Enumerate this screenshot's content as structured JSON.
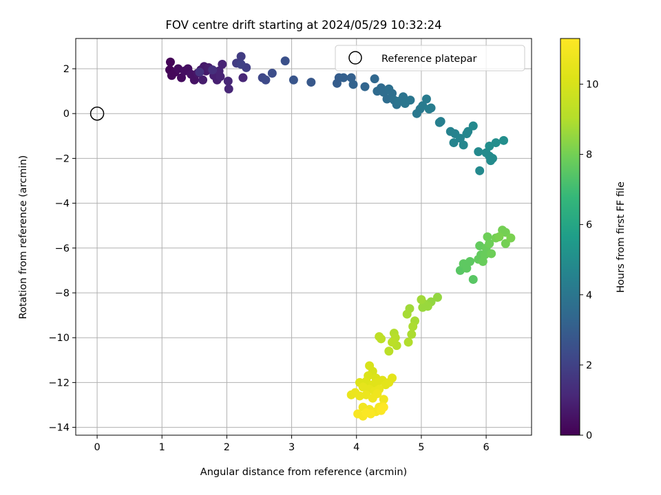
{
  "chart_data": {
    "type": "scatter",
    "title": "FOV centre drift starting at 2024/05/29 10:32:24",
    "xlabel": "Angular distance from reference (arcmin)",
    "ylabel": "Rotation from reference (arcmin)",
    "xlim": [
      -0.33,
      6.7
    ],
    "ylim": [
      -14.35,
      3.35
    ],
    "xticks": [
      0,
      1,
      2,
      3,
      4,
      5,
      6
    ],
    "yticks": [
      2,
      0,
      -2,
      -4,
      -6,
      -8,
      -10,
      -12,
      -14
    ],
    "grid": true,
    "legend": {
      "position": "top-right",
      "entries": [
        "Reference platepar"
      ]
    },
    "reference_point": {
      "x": 0,
      "y": 0
    },
    "colorbar": {
      "label": "Hours from first FF file",
      "colormap": "viridis",
      "range": [
        0,
        11.3
      ],
      "ticks": [
        0,
        2,
        4,
        6,
        8,
        10
      ]
    },
    "points": [
      {
        "x": 1.13,
        "y": 2.3,
        "t": 0.1
      },
      {
        "x": 1.12,
        "y": 1.95,
        "t": 0.1
      },
      {
        "x": 1.15,
        "y": 1.7,
        "t": 0.2
      },
      {
        "x": 1.2,
        "y": 1.85,
        "t": 0.2
      },
      {
        "x": 1.25,
        "y": 2.0,
        "t": 0.3
      },
      {
        "x": 1.3,
        "y": 1.6,
        "t": 0.3
      },
      {
        "x": 1.35,
        "y": 1.9,
        "t": 0.4
      },
      {
        "x": 1.4,
        "y": 2.0,
        "t": 0.4
      },
      {
        "x": 1.45,
        "y": 1.75,
        "t": 0.5
      },
      {
        "x": 1.5,
        "y": 1.5,
        "t": 0.5
      },
      {
        "x": 1.55,
        "y": 1.8,
        "t": 0.6
      },
      {
        "x": 1.6,
        "y": 1.95,
        "t": 0.6
      },
      {
        "x": 1.65,
        "y": 2.1,
        "t": 0.7
      },
      {
        "x": 1.68,
        "y": 1.9,
        "t": 0.7
      },
      {
        "x": 1.72,
        "y": 2.05,
        "t": 0.8
      },
      {
        "x": 1.63,
        "y": 1.5,
        "t": 0.8
      },
      {
        "x": 1.8,
        "y": 1.7,
        "t": 0.9
      },
      {
        "x": 1.85,
        "y": 1.5,
        "t": 0.9
      },
      {
        "x": 1.88,
        "y": 1.9,
        "t": 1.0
      },
      {
        "x": 1.93,
        "y": 2.2,
        "t": 1.0
      },
      {
        "x": 1.9,
        "y": 1.65,
        "t": 1.0
      },
      {
        "x": 2.02,
        "y": 1.45,
        "t": 1.1
      },
      {
        "x": 2.03,
        "y": 1.1,
        "t": 1.1
      },
      {
        "x": 2.25,
        "y": 1.6,
        "t": 1.1
      },
      {
        "x": 1.78,
        "y": 1.95,
        "t": 1.4
      },
      {
        "x": 1.58,
        "y": 1.85,
        "t": 1.5
      },
      {
        "x": 2.15,
        "y": 2.25,
        "t": 1.8
      },
      {
        "x": 2.22,
        "y": 2.55,
        "t": 1.8
      },
      {
        "x": 2.3,
        "y": 2.05,
        "t": 1.9
      },
      {
        "x": 2.22,
        "y": 2.2,
        "t": 2.0
      },
      {
        "x": 2.55,
        "y": 1.6,
        "t": 2.2
      },
      {
        "x": 2.6,
        "y": 1.5,
        "t": 2.3
      },
      {
        "x": 2.7,
        "y": 1.8,
        "t": 2.4
      },
      {
        "x": 2.9,
        "y": 2.35,
        "t": 2.5
      },
      {
        "x": 3.03,
        "y": 1.5,
        "t": 2.7
      },
      {
        "x": 3.3,
        "y": 1.4,
        "t": 2.8
      },
      {
        "x": 3.7,
        "y": 1.35,
        "t": 3.0
      },
      {
        "x": 3.73,
        "y": 1.6,
        "t": 3.0
      },
      {
        "x": 3.8,
        "y": 1.6,
        "t": 3.1
      },
      {
        "x": 3.92,
        "y": 1.6,
        "t": 3.1
      },
      {
        "x": 3.95,
        "y": 1.3,
        "t": 3.2
      },
      {
        "x": 4.13,
        "y": 1.2,
        "t": 3.3
      },
      {
        "x": 4.28,
        "y": 1.55,
        "t": 3.4
      },
      {
        "x": 4.32,
        "y": 1.0,
        "t": 3.5
      },
      {
        "x": 4.38,
        "y": 1.15,
        "t": 3.5
      },
      {
        "x": 4.42,
        "y": 0.95,
        "t": 3.6
      },
      {
        "x": 4.47,
        "y": 0.65,
        "t": 3.6
      },
      {
        "x": 4.5,
        "y": 1.1,
        "t": 3.7
      },
      {
        "x": 4.55,
        "y": 0.9,
        "t": 3.7
      },
      {
        "x": 4.58,
        "y": 0.6,
        "t": 3.8
      },
      {
        "x": 4.62,
        "y": 0.4,
        "t": 3.8
      },
      {
        "x": 4.65,
        "y": 0.55,
        "t": 3.9
      },
      {
        "x": 4.72,
        "y": 0.75,
        "t": 3.9
      },
      {
        "x": 4.75,
        "y": 0.45,
        "t": 4.0
      },
      {
        "x": 4.83,
        "y": 0.6,
        "t": 4.0
      },
      {
        "x": 4.93,
        "y": 0.0,
        "t": 4.1
      },
      {
        "x": 4.98,
        "y": 0.2,
        "t": 4.1
      },
      {
        "x": 5.02,
        "y": 0.35,
        "t": 4.2
      },
      {
        "x": 5.08,
        "y": 0.65,
        "t": 4.2
      },
      {
        "x": 5.12,
        "y": 0.2,
        "t": 4.3
      },
      {
        "x": 5.15,
        "y": 0.25,
        "t": 4.3
      },
      {
        "x": 5.28,
        "y": -0.4,
        "t": 4.4
      },
      {
        "x": 5.3,
        "y": -0.35,
        "t": 4.4
      },
      {
        "x": 5.45,
        "y": -0.8,
        "t": 4.5
      },
      {
        "x": 5.52,
        "y": -0.9,
        "t": 4.5
      },
      {
        "x": 5.5,
        "y": -1.3,
        "t": 4.6
      },
      {
        "x": 5.6,
        "y": -1.1,
        "t": 4.6
      },
      {
        "x": 5.65,
        "y": -1.4,
        "t": 4.7
      },
      {
        "x": 5.7,
        "y": -0.9,
        "t": 4.7
      },
      {
        "x": 5.72,
        "y": -0.8,
        "t": 4.7
      },
      {
        "x": 5.8,
        "y": -0.55,
        "t": 4.8
      },
      {
        "x": 5.88,
        "y": -1.7,
        "t": 4.8
      },
      {
        "x": 5.9,
        "y": -2.55,
        "t": 4.8
      },
      {
        "x": 6.0,
        "y": -1.75,
        "t": 4.9
      },
      {
        "x": 6.05,
        "y": -1.9,
        "t": 4.9
      },
      {
        "x": 6.07,
        "y": -2.1,
        "t": 4.9
      },
      {
        "x": 6.1,
        "y": -2.0,
        "t": 4.9
      },
      {
        "x": 6.05,
        "y": -1.45,
        "t": 5.0
      },
      {
        "x": 6.15,
        "y": -1.3,
        "t": 5.0
      },
      {
        "x": 6.27,
        "y": -1.2,
        "t": 5.0
      },
      {
        "x": 5.8,
        "y": -7.4,
        "t": 7.5
      },
      {
        "x": 5.6,
        "y": -7.0,
        "t": 7.5
      },
      {
        "x": 5.65,
        "y": -6.7,
        "t": 7.6
      },
      {
        "x": 5.7,
        "y": -6.9,
        "t": 7.6
      },
      {
        "x": 5.75,
        "y": -6.6,
        "t": 7.6
      },
      {
        "x": 5.88,
        "y": -6.5,
        "t": 7.7
      },
      {
        "x": 5.9,
        "y": -5.9,
        "t": 7.7
      },
      {
        "x": 5.92,
        "y": -6.3,
        "t": 7.7
      },
      {
        "x": 5.95,
        "y": -6.6,
        "t": 7.8
      },
      {
        "x": 5.98,
        "y": -6.3,
        "t": 7.8
      },
      {
        "x": 6.0,
        "y": -6.0,
        "t": 7.8
      },
      {
        "x": 6.02,
        "y": -5.5,
        "t": 7.9
      },
      {
        "x": 6.05,
        "y": -5.8,
        "t": 7.9
      },
      {
        "x": 6.08,
        "y": -6.25,
        "t": 7.9
      },
      {
        "x": 6.15,
        "y": -5.55,
        "t": 8.0
      },
      {
        "x": 6.25,
        "y": -5.2,
        "t": 8.0
      },
      {
        "x": 6.3,
        "y": -5.8,
        "t": 8.0
      },
      {
        "x": 6.3,
        "y": -5.3,
        "t": 8.0
      },
      {
        "x": 6.38,
        "y": -5.55,
        "t": 8.1
      },
      {
        "x": 6.2,
        "y": -5.5,
        "t": 8.1
      },
      {
        "x": 5.25,
        "y": -8.2,
        "t": 8.5
      },
      {
        "x": 5.15,
        "y": -8.4,
        "t": 8.5
      },
      {
        "x": 5.1,
        "y": -8.6,
        "t": 8.6
      },
      {
        "x": 5.05,
        "y": -8.5,
        "t": 8.6
      },
      {
        "x": 5.02,
        "y": -8.65,
        "t": 8.6
      },
      {
        "x": 5.0,
        "y": -8.3,
        "t": 8.7
      },
      {
        "x": 4.82,
        "y": -8.7,
        "t": 8.7
      },
      {
        "x": 4.78,
        "y": -8.95,
        "t": 8.8
      },
      {
        "x": 4.9,
        "y": -9.25,
        "t": 8.8
      },
      {
        "x": 4.87,
        "y": -9.5,
        "t": 8.9
      },
      {
        "x": 4.85,
        "y": -9.85,
        "t": 8.9
      },
      {
        "x": 4.8,
        "y": -10.2,
        "t": 9.0
      },
      {
        "x": 4.58,
        "y": -9.8,
        "t": 9.0
      },
      {
        "x": 4.6,
        "y": -10.0,
        "t": 9.1
      },
      {
        "x": 4.62,
        "y": -10.35,
        "t": 9.1
      },
      {
        "x": 4.55,
        "y": -10.2,
        "t": 9.2
      },
      {
        "x": 4.5,
        "y": -10.6,
        "t": 9.2
      },
      {
        "x": 4.35,
        "y": -9.95,
        "t": 9.3
      },
      {
        "x": 4.38,
        "y": -10.05,
        "t": 9.3
      },
      {
        "x": 4.2,
        "y": -11.25,
        "t": 10.0
      },
      {
        "x": 4.25,
        "y": -11.5,
        "t": 10.0
      },
      {
        "x": 4.18,
        "y": -11.7,
        "t": 10.1
      },
      {
        "x": 4.3,
        "y": -11.8,
        "t": 10.1
      },
      {
        "x": 4.15,
        "y": -11.95,
        "t": 10.2
      },
      {
        "x": 4.05,
        "y": -12.0,
        "t": 10.2
      },
      {
        "x": 4.25,
        "y": -12.1,
        "t": 10.3
      },
      {
        "x": 4.32,
        "y": -12.0,
        "t": 10.3
      },
      {
        "x": 4.4,
        "y": -11.9,
        "t": 10.3
      },
      {
        "x": 4.45,
        "y": -12.1,
        "t": 10.4
      },
      {
        "x": 4.5,
        "y": -12.0,
        "t": 10.4
      },
      {
        "x": 4.55,
        "y": -11.8,
        "t": 10.4
      },
      {
        "x": 4.1,
        "y": -12.2,
        "t": 10.5
      },
      {
        "x": 4.2,
        "y": -12.3,
        "t": 10.5
      },
      {
        "x": 4.28,
        "y": -12.4,
        "t": 10.6
      },
      {
        "x": 4.35,
        "y": -12.3,
        "t": 10.6
      },
      {
        "x": 3.92,
        "y": -12.55,
        "t": 10.6
      },
      {
        "x": 3.98,
        "y": -12.45,
        "t": 10.7
      },
      {
        "x": 4.05,
        "y": -12.6,
        "t": 10.7
      },
      {
        "x": 4.15,
        "y": -12.55,
        "t": 10.7
      },
      {
        "x": 4.25,
        "y": -12.7,
        "t": 10.8
      },
      {
        "x": 4.32,
        "y": -12.5,
        "t": 10.8
      },
      {
        "x": 4.42,
        "y": -12.75,
        "t": 10.8
      },
      {
        "x": 4.1,
        "y": -13.1,
        "t": 10.9
      },
      {
        "x": 4.2,
        "y": -13.2,
        "t": 10.9
      },
      {
        "x": 4.3,
        "y": -13.3,
        "t": 11.0
      },
      {
        "x": 4.35,
        "y": -13.1,
        "t": 11.0
      },
      {
        "x": 4.4,
        "y": -13.05,
        "t": 11.0
      },
      {
        "x": 4.02,
        "y": -13.4,
        "t": 11.1
      },
      {
        "x": 4.1,
        "y": -13.5,
        "t": 11.1
      },
      {
        "x": 4.22,
        "y": -13.4,
        "t": 11.2
      },
      {
        "x": 4.15,
        "y": -13.35,
        "t": 11.2
      },
      {
        "x": 4.38,
        "y": -13.25,
        "t": 11.2
      },
      {
        "x": 4.42,
        "y": -13.1,
        "t": 11.3
      }
    ]
  }
}
